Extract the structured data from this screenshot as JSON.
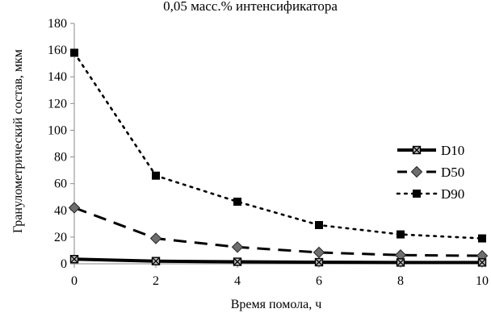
{
  "chart_data": {
    "type": "line",
    "title": "0,05 масс.% интенсификатора",
    "xlabel": "Время помола, ч",
    "ylabel": "Гранулометрический состав, мкм",
    "x": [
      0,
      2,
      4,
      6,
      8,
      10
    ],
    "xticks": [
      "0",
      "2",
      "4",
      "6",
      "8",
      "10"
    ],
    "yticks": [
      "0",
      "20",
      "40",
      "60",
      "80",
      "100",
      "120",
      "140",
      "160",
      "180"
    ],
    "xlim": [
      0,
      10
    ],
    "ylim": [
      0,
      180
    ],
    "grid": false,
    "legend_position": "right",
    "series": [
      {
        "name": "D10",
        "values": [
          3.5,
          2,
          1.5,
          1.2,
          1,
          1
        ],
        "line_style": "solid",
        "marker": "x-square",
        "color": "#000000"
      },
      {
        "name": "D50",
        "values": [
          42,
          19,
          12.5,
          8.5,
          6.5,
          6
        ],
        "line_style": "dashed",
        "marker": "diamond",
        "color": "#000000"
      },
      {
        "name": "D90",
        "values": [
          158,
          66,
          46.5,
          29,
          22,
          19
        ],
        "line_style": "dotted",
        "marker": "square",
        "color": "#000000"
      }
    ]
  }
}
